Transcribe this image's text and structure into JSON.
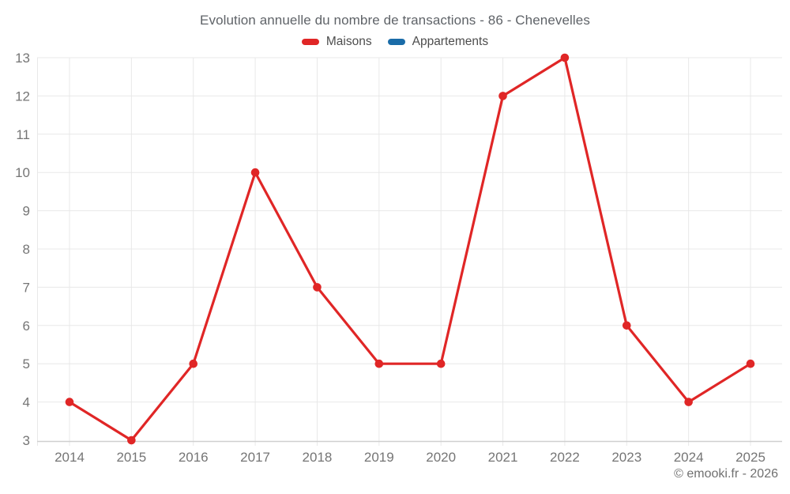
{
  "title": "Evolution annuelle du nombre de transactions - 86 - Chenevelles",
  "footer": "© emooki.fr - 2026",
  "style": {
    "maisons_color": "#e02626",
    "appartements_color": "#1a6ca8",
    "grid_color": "#e8e8e8",
    "axis_color": "#cfcfcf",
    "tick_text_color": "#757575",
    "title_text_color": "#5f6368"
  },
  "chart_data": {
    "type": "line",
    "title": "Evolution annuelle du nombre de transactions - 86 - Chenevelles",
    "categories": [
      "2014",
      "2015",
      "2016",
      "2017",
      "2018",
      "2019",
      "2020",
      "2021",
      "2022",
      "2023",
      "2024",
      "2025"
    ],
    "series": [
      {
        "name": "Maisons",
        "color": "#e02626",
        "values": [
          4,
          3,
          5,
          10,
          7,
          5,
          5,
          12,
          13,
          6,
          4,
          5
        ]
      },
      {
        "name": "Appartements",
        "color": "#1a6ca8",
        "values": []
      }
    ],
    "xlabel": "",
    "ylabel": "",
    "ylim": [
      3,
      13
    ],
    "ytick_step": 1,
    "grid": true,
    "legend_position": "top",
    "marker": "circle"
  }
}
